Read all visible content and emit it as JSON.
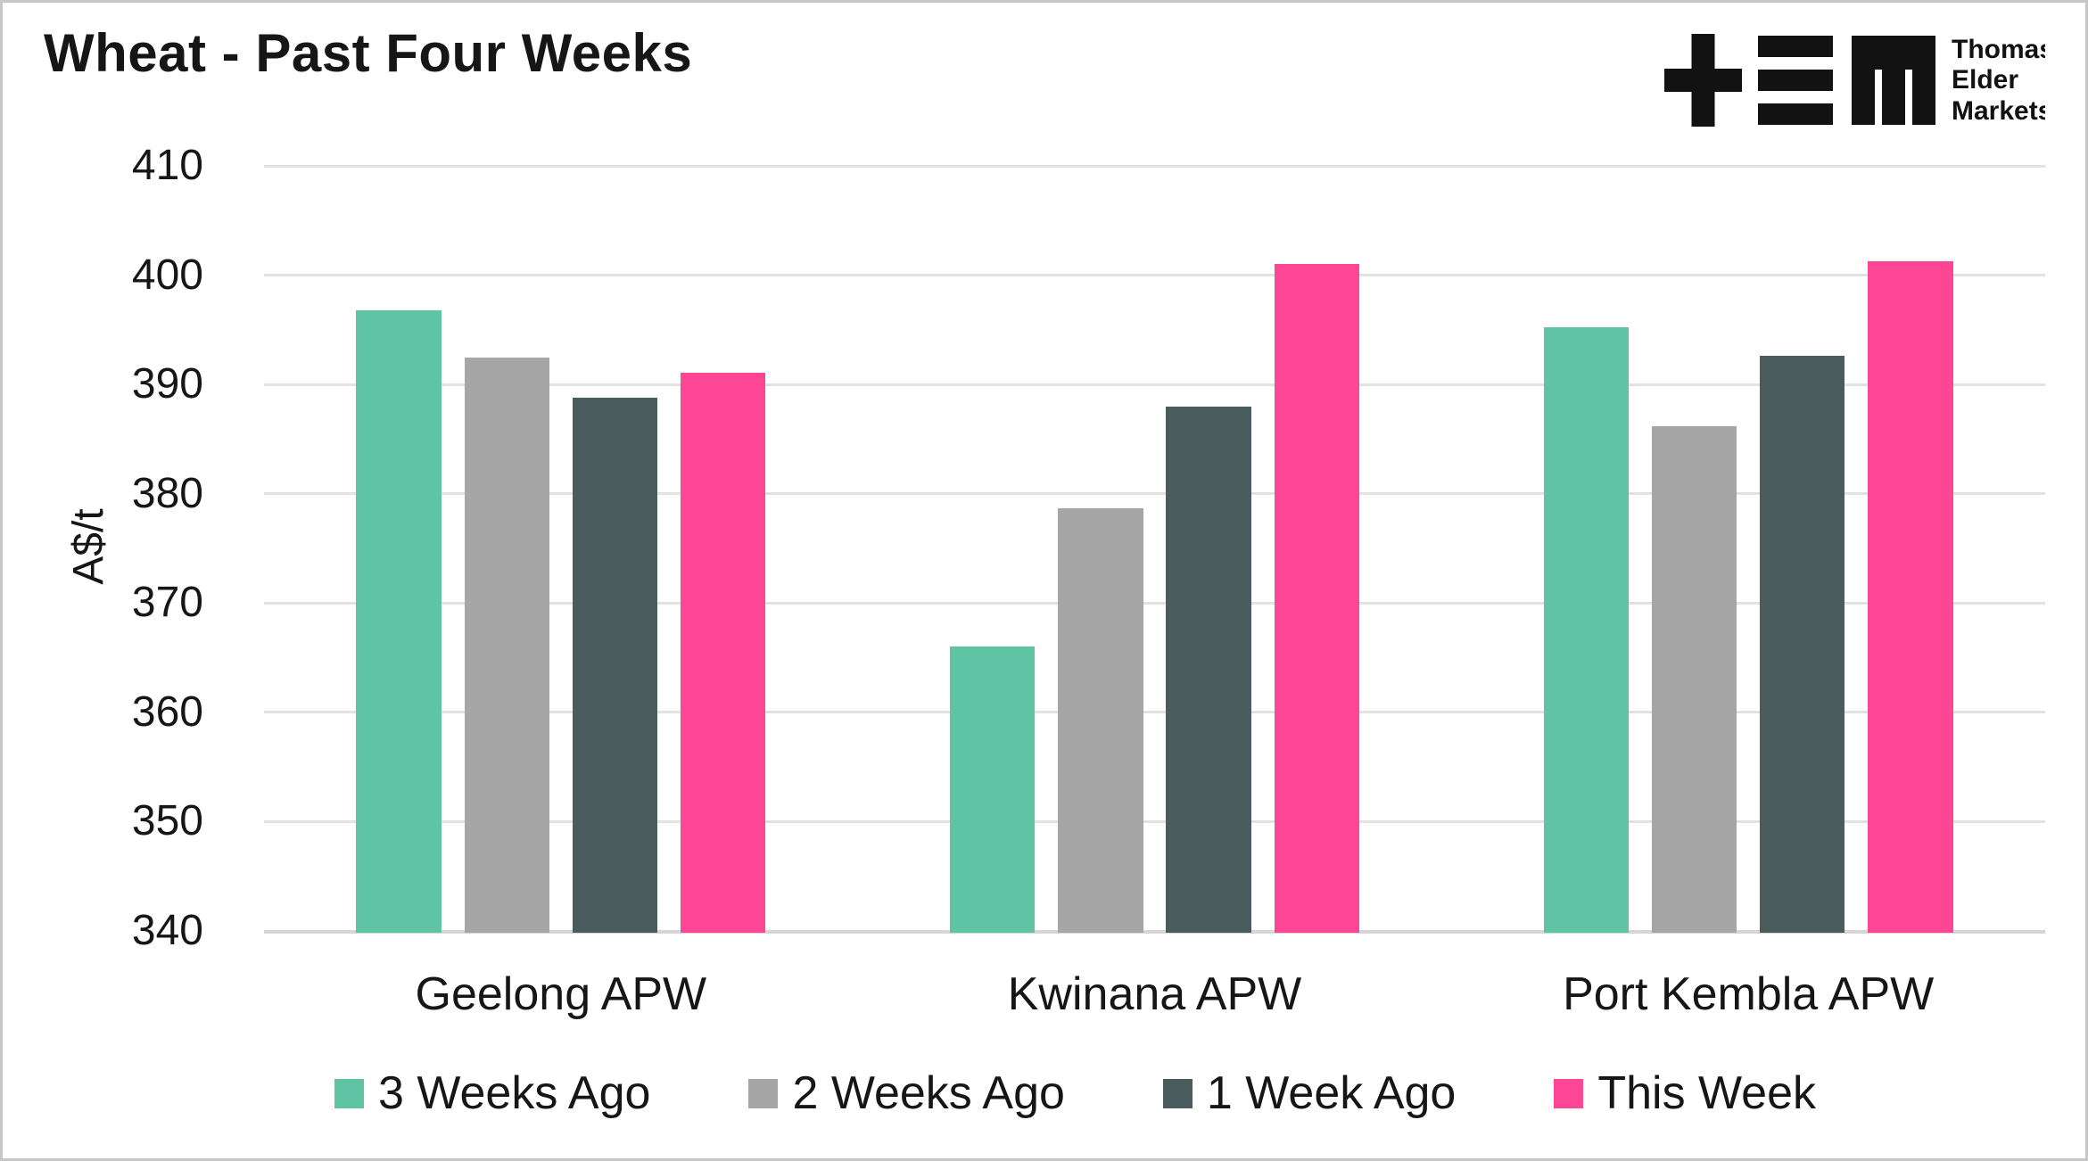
{
  "page": {
    "background": "#ffffff",
    "border_color": "#c7c7c7"
  },
  "header": {
    "title": "Wheat - Past Four Weeks"
  },
  "logo": {
    "lines": [
      "Thomas",
      "Elder",
      "Markets"
    ],
    "color": "#121212",
    "glyphs": [
      "plus-icon",
      "triple-bar-icon",
      "m-icon"
    ]
  },
  "chart_data": {
    "type": "bar",
    "title": "Wheat - Past Four Weeks",
    "xlabel": "",
    "ylabel": "A$/t",
    "ylim": [
      340,
      410
    ],
    "yticks": [
      340,
      350,
      360,
      370,
      380,
      390,
      400,
      410
    ],
    "grid": true,
    "legend_position": "bottom",
    "gridline_color": "#e2e2e2",
    "categories": [
      "Geelong APW",
      "Kwinana APW",
      "Port Kembla APW"
    ],
    "series": [
      {
        "name": "3 Weeks Ago",
        "color": "#5FC4A4",
        "values": [
          396.8,
          366.0,
          395.2
        ]
      },
      {
        "name": "2 Weeks Ago",
        "color": "#A6A6A6",
        "values": [
          392.5,
          378.7,
          386.2
        ]
      },
      {
        "name": "1 Week Ago",
        "color": "#4B5C5F",
        "values": [
          388.8,
          388.0,
          392.6
        ]
      },
      {
        "name": "This Week",
        "color": "#FD4694",
        "values": [
          391.1,
          401.0,
          401.3
        ]
      }
    ]
  }
}
